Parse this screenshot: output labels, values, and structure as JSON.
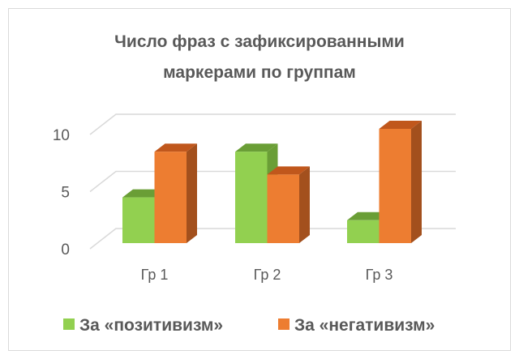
{
  "chart_data": {
    "type": "bar",
    "style": "3d-clustered-column",
    "title": [
      "Число фраз с зафиксированными",
      "маркерами по группам"
    ],
    "categories": [
      "Гр 1",
      "Гр 2",
      "Гр 3"
    ],
    "series": [
      {
        "name": "За «позитивизм»",
        "values": [
          4,
          8,
          2
        ],
        "color": "#92D050",
        "top": "#6A9E36",
        "side": "#6A9E36"
      },
      {
        "name": "За «негативизм»",
        "values": [
          8,
          6,
          10
        ],
        "color": "#ED7D31",
        "top": "#C0571C",
        "side": "#A3501D"
      }
    ],
    "yticks": [
      0,
      5,
      10
    ],
    "ylim": [
      0,
      10
    ],
    "grid": true,
    "legend": "bottom"
  }
}
